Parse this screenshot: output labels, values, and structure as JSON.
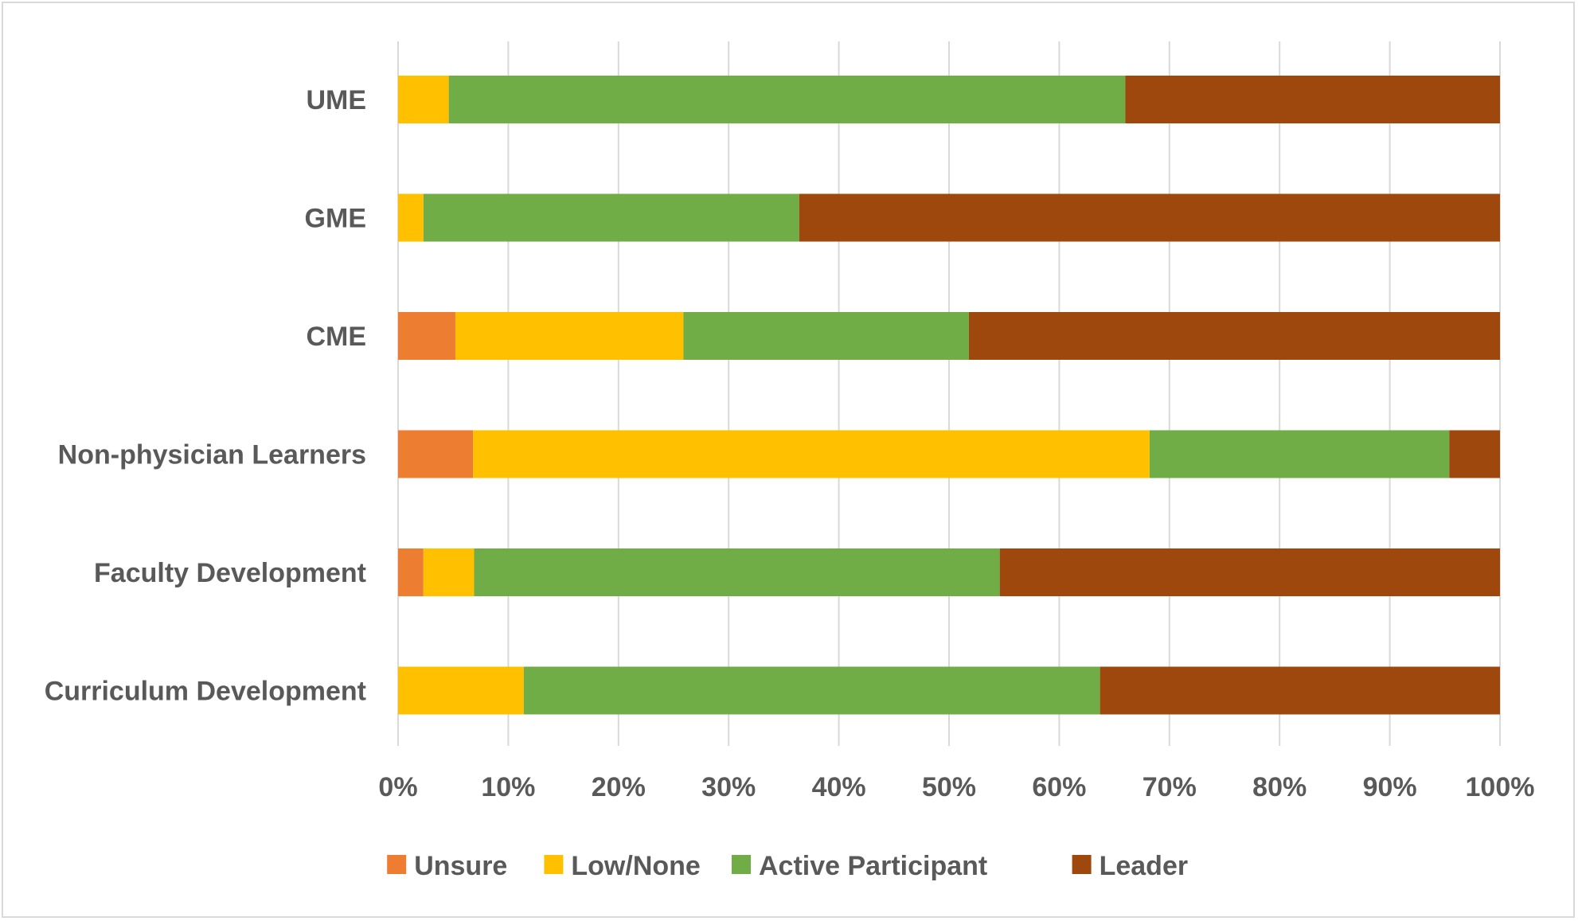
{
  "chart_data": {
    "type": "bar",
    "orientation": "horizontal",
    "stacked": "percent",
    "categories": [
      "UME",
      "GME",
      "CME",
      "Non-physician Learners",
      "Faculty Development",
      "Curriculum Development"
    ],
    "series": [
      {
        "name": "Unsure",
        "color": "#ed7d31",
        "values": [
          0,
          0,
          5.2,
          6.8,
          2.3,
          0
        ]
      },
      {
        "name": "Low/None",
        "color": "#ffc000",
        "values": [
          4.6,
          2.3,
          20.7,
          61.4,
          4.6,
          11.4
        ]
      },
      {
        "name": "Active Participant",
        "color": "#70ad47",
        "values": [
          61.4,
          34.1,
          25.9,
          27.2,
          47.7,
          52.3
        ]
      },
      {
        "name": "Leader",
        "color": "#9e480e",
        "values": [
          34.0,
          63.6,
          48.2,
          4.6,
          45.4,
          36.3
        ]
      }
    ],
    "xlim": [
      0,
      100
    ],
    "xticks": [
      "0%",
      "10%",
      "20%",
      "30%",
      "40%",
      "50%",
      "60%",
      "70%",
      "80%",
      "90%",
      "100%"
    ],
    "grid": "vertical",
    "legend": "bottom",
    "title": "",
    "xlabel": "",
    "ylabel": ""
  }
}
